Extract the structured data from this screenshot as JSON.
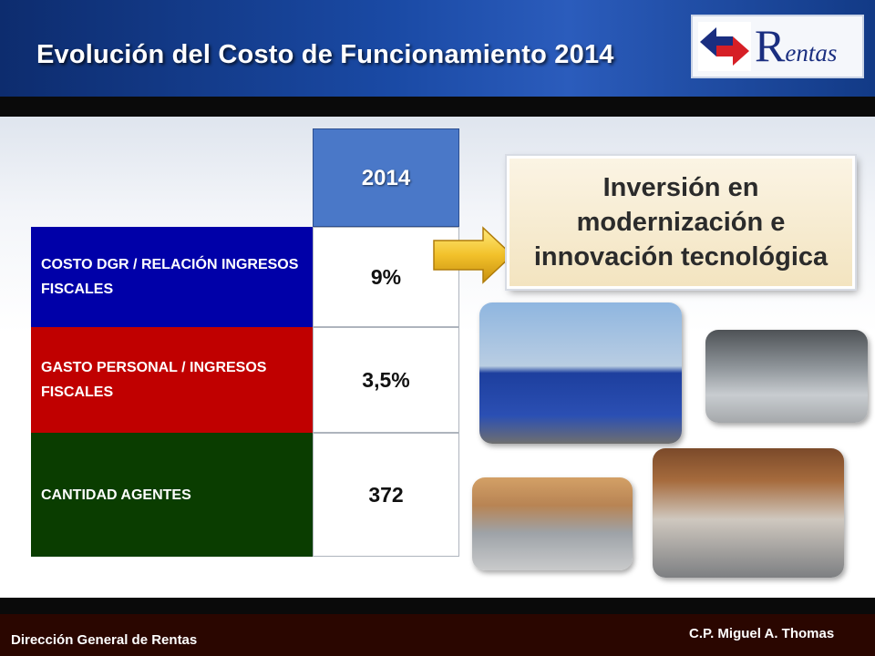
{
  "header": {
    "title": "Evolución del Costo de Funcionamiento 2014",
    "logo_big": "R",
    "logo_rest": "entas",
    "colors": {
      "header_blue": "#1a4aa5",
      "logo_red": "#d61f26",
      "logo_navy": "#1a2e80"
    }
  },
  "table": {
    "year_header": "2014",
    "rows": [
      {
        "label": "COSTO DGR / RELACIÓN INGRESOS FISCALES",
        "value": "9%",
        "color": "#0000a8"
      },
      {
        "label": "GASTO PERSONAL / INGRESOS FISCALES",
        "value": "3,5%",
        "color": "#c00000"
      },
      {
        "label": "CANTIDAD AGENTES",
        "value": "372",
        "color": "#0a3d00"
      }
    ]
  },
  "callout": {
    "text": "Inversión en modernización e innovación tecnológica"
  },
  "footer": {
    "left": "Dirección General de Rentas",
    "right": "C.P. Miguel A. Thomas"
  }
}
